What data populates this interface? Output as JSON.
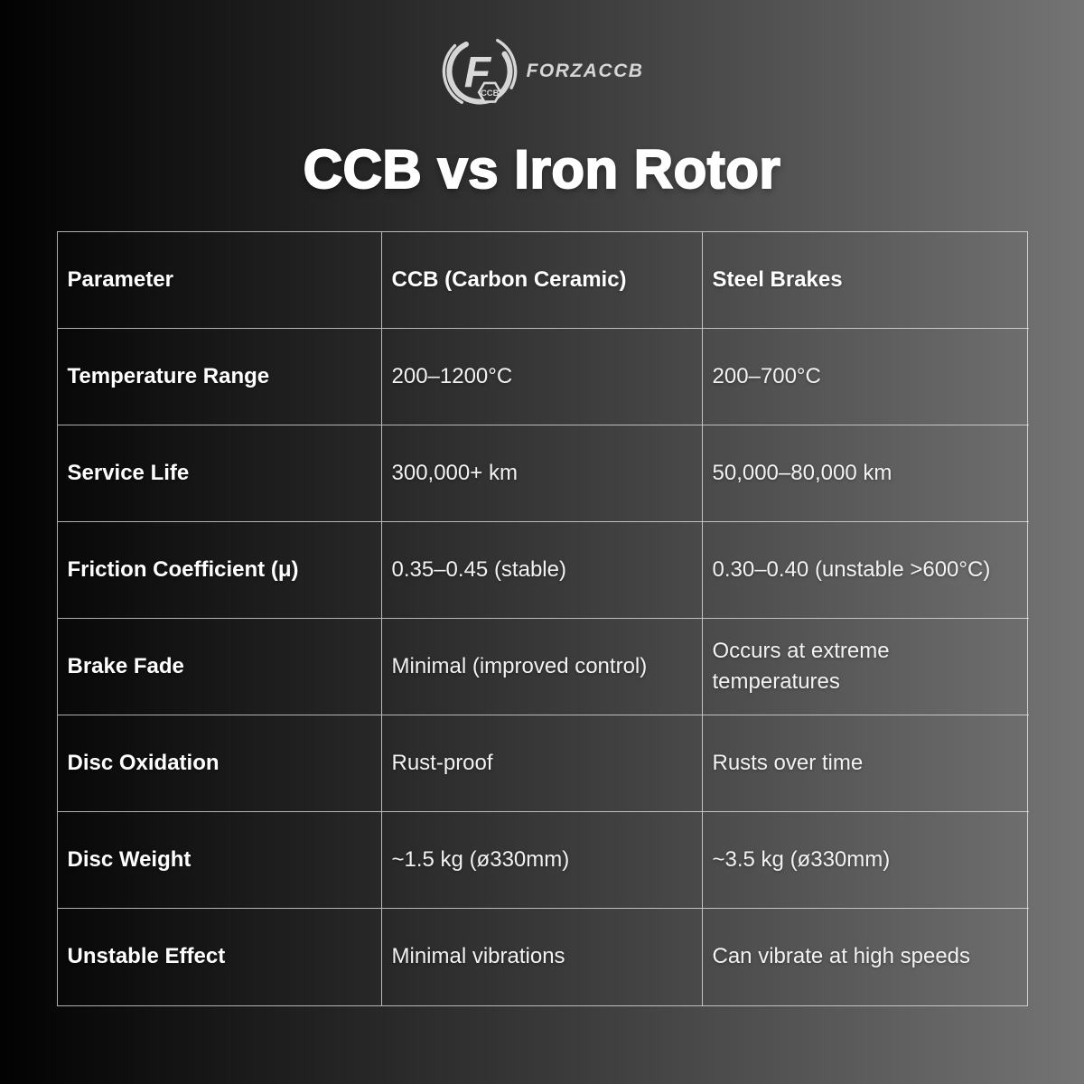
{
  "logo": {
    "brand": "FORZACCB",
    "mark_letter": "F",
    "badge": "CCB"
  },
  "title": "CCB vs Iron Rotor",
  "table": {
    "headers": [
      "Parameter",
      "CCB (Carbon Ceramic)",
      "Steel Brakes"
    ],
    "rows": [
      [
        "Temperature Range",
        "200–1200°C",
        "200–700°C"
      ],
      [
        "Service Life",
        "300,000+ km",
        "50,000–80,000 km"
      ],
      [
        "Friction Coefficient (μ)",
        "0.35–0.45 (stable)",
        "0.30–0.40 (unstable >600°C)"
      ],
      [
        "Brake Fade",
        "Minimal (improved control)",
        "Occurs at extreme temperatures"
      ],
      [
        "Disc Oxidation",
        "Rust-proof",
        "Rusts over time"
      ],
      [
        "Disc Weight",
        "~1.5 kg (ø330mm)",
        "~3.5 kg (ø330mm)"
      ],
      [
        "Unstable Effect",
        "Minimal vibrations",
        "Can vibrate at high speeds"
      ]
    ]
  },
  "colors": {
    "background_left": "#020202",
    "background_right": "#747474",
    "table_border": "#f0f0f0",
    "text": "#ffffff",
    "logo": "#d6d6d6"
  }
}
